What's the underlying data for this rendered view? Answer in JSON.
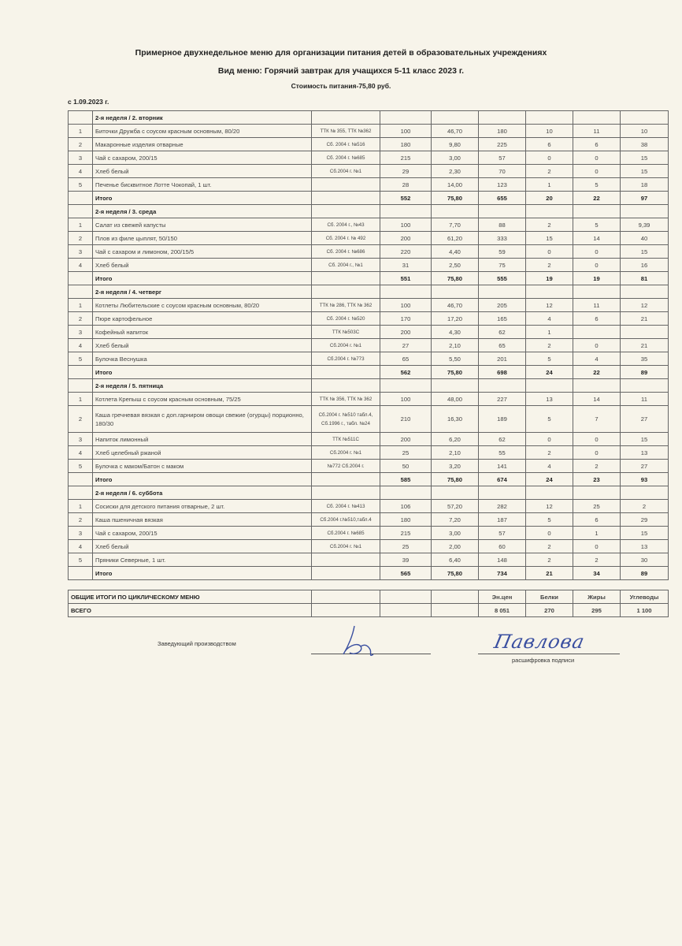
{
  "header": {
    "title": "Примерное двухнедельное меню для организации питания детей в  образовательных учреждениях",
    "subtitle": "Вид меню: Горячий завтрак для учащихся 5-11 класс  2023 г.",
    "cost": "Стоимость питания-75,80 руб.",
    "date": "с 1.09.2023 г."
  },
  "days": [
    {
      "title": "2-я неделя / 2. вторник",
      "items": [
        [
          "1",
          "Биточки Дружба с соусом красным основным, 80/20",
          "ТТК № 355, ТТК №362",
          "100",
          "46,70",
          "180",
          "10",
          "11",
          "10"
        ],
        [
          "2",
          "Макаронные изделия отварные",
          "Сб. 2004 г. №516",
          "180",
          "9,80",
          "225",
          "6",
          "6",
          "38"
        ],
        [
          "3",
          "Чай с сахаром, 200/15",
          "Сб. 2004 г. №685",
          "215",
          "3,00",
          "57",
          "0",
          "0",
          "15"
        ],
        [
          "4",
          "Хлеб белый",
          "Сб.2004 г. №1",
          "29",
          "2,30",
          "70",
          "2",
          "0",
          "15"
        ],
        [
          "5",
          "Печенье бисквитное Лотте Чокопай, 1 шт.",
          "",
          "28",
          "14,00",
          "123",
          "1",
          "5",
          "18"
        ]
      ],
      "total": [
        "Итого",
        "552",
        "75,80",
        "655",
        "20",
        "22",
        "97"
      ]
    },
    {
      "title": "2-я неделя / 3. среда",
      "items": [
        [
          "1",
          "Салат из свежей капусты",
          "Сб. 2004 г., №43",
          "100",
          "7,70",
          "88",
          "2",
          "5",
          "9,39"
        ],
        [
          "2",
          "Плов из филе цыплят, 50/150",
          "Сб. 2004 г. № 492",
          "200",
          "61,20",
          "333",
          "15",
          "14",
          "40"
        ],
        [
          "3",
          "Чай с сахаром и лимоном, 200/15/5",
          "Сб. 2004 г. №686",
          "220",
          "4,40",
          "59",
          "0",
          "0",
          "15"
        ],
        [
          "4",
          "Хлеб белый",
          "Сб. 2004 г., №1",
          "31",
          "2,50",
          "75",
          "2",
          "0",
          "16"
        ]
      ],
      "total": [
        "Итого",
        "551",
        "75,80",
        "555",
        "19",
        "19",
        "81"
      ]
    },
    {
      "title": "2-я неделя / 4. четверг",
      "items": [
        [
          "1",
          "Котлеты Любительские с соусом красным основным, 80/20",
          "ТТК № 286, ТТК № 362",
          "100",
          "46,70",
          "205",
          "12",
          "11",
          "12"
        ],
        [
          "2",
          "Пюре картофельное",
          "Сб. 2004 г. №520",
          "170",
          "17,20",
          "165",
          "4",
          "6",
          "21"
        ],
        [
          "3",
          "Кофейный напиток",
          "ТТК №503С",
          "200",
          "4,30",
          "62",
          "1",
          "",
          ""
        ],
        [
          "4",
          "Хлеб белый",
          "Сб.2004 г. №1",
          "27",
          "2,10",
          "65",
          "2",
          "0",
          "21"
        ],
        [
          "5",
          "Булочка Веснушка",
          "Сб.2004 г. №773",
          "65",
          "5,50",
          "201",
          "5",
          "4",
          "35"
        ]
      ],
      "total": [
        "Итого",
        "562",
        "75,80",
        "698",
        "24",
        "22",
        "89"
      ]
    },
    {
      "title": "2-я неделя / 5. пятница",
      "items": [
        [
          "1",
          "Котлета Крепыш с соусом красным основным, 75/25",
          "ТТК № 356, ТТК № 362",
          "100",
          "48,00",
          "227",
          "13",
          "14",
          "11"
        ],
        [
          "2",
          "Каша гречневая вязкая с доп.гарниром овощи свежие (огурцы) порционно, 180/30",
          "Сб.2004 г. №510 табл.4, Сб.1996 г., табл. №24",
          "210",
          "16,30",
          "189",
          "5",
          "7",
          "27"
        ],
        [
          "3",
          "Напиток лимонный",
          "ТТК №511С",
          "200",
          "6,20",
          "62",
          "0",
          "0",
          "15"
        ],
        [
          "4",
          "Хлеб целебный ржаной",
          "Сб.2004 г. №1",
          "25",
          "2,10",
          "55",
          "2",
          "0",
          "13"
        ],
        [
          "5",
          "Булочка с маком/Батон с маком",
          "№772 Сб.2004 г.",
          "50",
          "3,20",
          "141",
          "4",
          "2",
          "27"
        ]
      ],
      "total": [
        "Итого",
        "585",
        "75,80",
        "674",
        "24",
        "23",
        "93"
      ]
    },
    {
      "title": "2-я неделя / 6. суббота",
      "items": [
        [
          "1",
          "Сосиски для детского питания отварные, 2 шт.",
          "Сб. 2004 г. №413",
          "106",
          "57,20",
          "282",
          "12",
          "25",
          "2"
        ],
        [
          "2",
          "Каша пшеничная вязкая",
          "Сб.2004 г.№510,табл.4",
          "180",
          "7,20",
          "187",
          "5",
          "6",
          "29"
        ],
        [
          "3",
          "Чай с сахаром, 200/15",
          "Сб.2004 г. №685",
          "215",
          "3,00",
          "57",
          "0",
          "1",
          "15"
        ],
        [
          "4",
          "Хлеб белый",
          "Сб.2004 г. №1",
          "25",
          "2,00",
          "60",
          "2",
          "0",
          "13"
        ],
        [
          "5",
          "Пряники Северные, 1 шт.",
          "",
          "39",
          "6,40",
          "148",
          "2",
          "2",
          "30"
        ]
      ],
      "total": [
        "Итого",
        "565",
        "75,80",
        "734",
        "21",
        "34",
        "89"
      ]
    }
  ],
  "summary": {
    "row1": [
      "ОБЩИЕ ИТОГИ ПО ЦИКЛИЧЕСКОМУ МЕНЮ",
      "",
      "",
      "",
      "Эн.цен",
      "Белки",
      "Жиры",
      "Углеводы"
    ],
    "row2": [
      "ВСЕГО",
      "",
      "",
      "",
      "8 051",
      "270",
      "295",
      "1 100"
    ]
  },
  "signature": {
    "position": "Заведующий производством",
    "name_signature": "Павлова",
    "decode_label": "расшифровка подписи"
  }
}
